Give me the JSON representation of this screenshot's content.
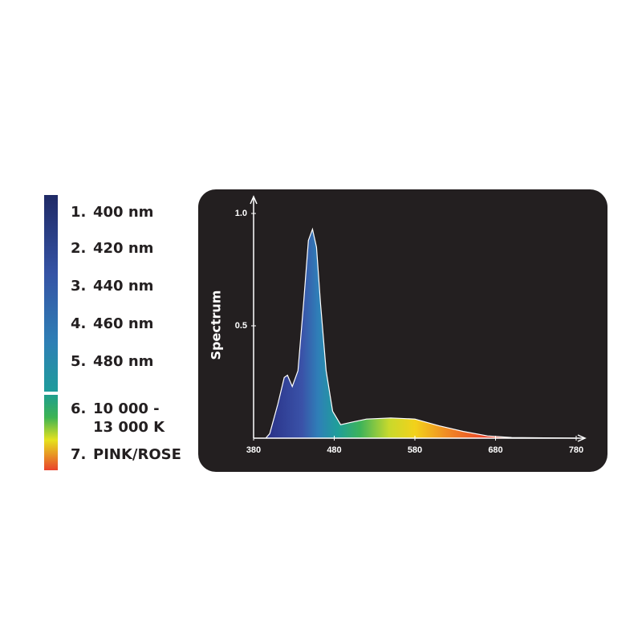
{
  "legend": [
    {
      "number": "1.",
      "lines": [
        "400 nm"
      ]
    },
    {
      "number": "2.",
      "lines": [
        "420 nm"
      ]
    },
    {
      "number": "3.",
      "lines": [
        "440 nm"
      ]
    },
    {
      "number": "4.",
      "lines": [
        "460 nm"
      ]
    },
    {
      "number": "5.",
      "lines": [
        "480 nm"
      ]
    },
    {
      "number": "6.",
      "lines": [
        "10 000 -",
        "13 000 K"
      ]
    },
    {
      "number": "7.",
      "lines": [
        "PINK/ROSE"
      ]
    }
  ],
  "chart_data": {
    "type": "area",
    "y_label": "Spectrum",
    "x": [
      395,
      400,
      410,
      418,
      422,
      428,
      435,
      442,
      448,
      453,
      458,
      463,
      470,
      478,
      488,
      500,
      520,
      550,
      580,
      610,
      640,
      670,
      700,
      780
    ],
    "values": [
      0,
      0.02,
      0.15,
      0.27,
      0.28,
      0.23,
      0.3,
      0.6,
      0.88,
      0.93,
      0.85,
      0.6,
      0.3,
      0.12,
      0.06,
      0.07,
      0.085,
      0.09,
      0.085,
      0.055,
      0.03,
      0.01,
      0.003,
      0
    ],
    "xlim": [
      380,
      780
    ],
    "xticks": [
      380,
      480,
      580,
      680,
      780
    ],
    "ylim": [
      0,
      1.05
    ],
    "yticks": [
      0.5,
      {
        "value": 1,
        "label": "1.0"
      }
    ]
  }
}
